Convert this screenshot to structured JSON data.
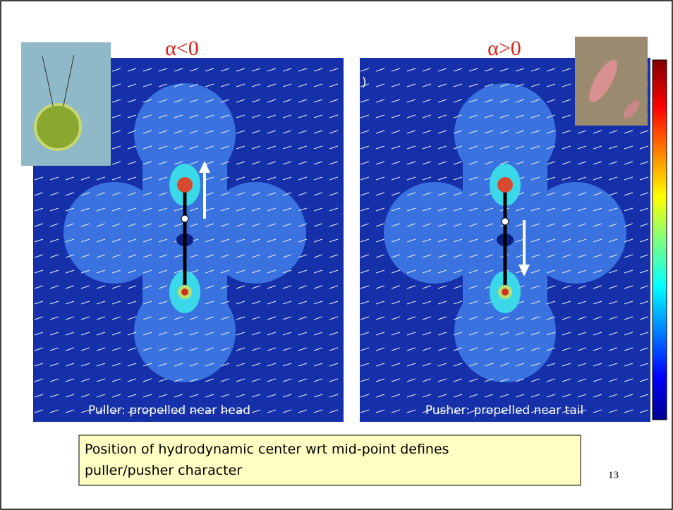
{
  "slide": {
    "panels": [
      {
        "title": "α<0",
        "caption": "Puller: propelled near head"
      },
      {
        "title": "α>0",
        "caption": "Pusher: propelled near tail",
        "fragment": ")"
      }
    ],
    "note": "Position of hydrodynamic center wrt mid-point defines puller/pusher character",
    "page_number": "13"
  }
}
